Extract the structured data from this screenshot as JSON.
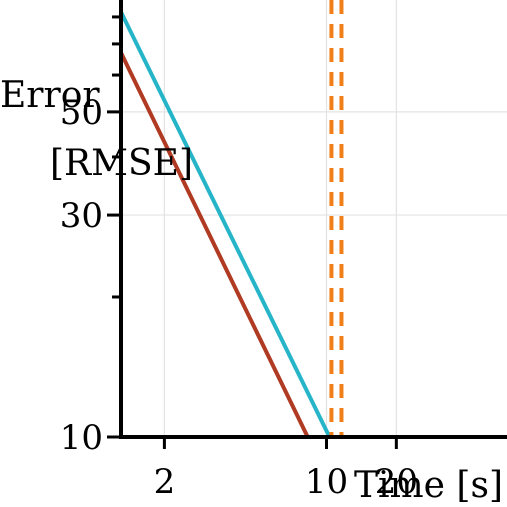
{
  "chart_data": {
    "type": "line",
    "xlabel": "Time [s]",
    "ylabel_lines": [
      "Error",
      "[RMSE]"
    ],
    "x_scale": "log",
    "y_scale": "log",
    "xlim": [
      1.3,
      60
    ],
    "ylim": [
      10,
      87
    ],
    "grid": true,
    "x_ticks": [
      {
        "value": 2,
        "label": "2"
      },
      {
        "value": 10,
        "label": "10"
      },
      {
        "value": 20,
        "label": "20"
      }
    ],
    "y_ticks": [
      {
        "value": 10,
        "label": "10"
      },
      {
        "value": 30,
        "label": "30"
      },
      {
        "value": 50,
        "label": "50"
      }
    ],
    "y_minor_ticks": [
      20,
      40,
      60,
      70,
      80
    ],
    "series": [
      {
        "color": "#26b5c8",
        "x": [
          1.3,
          10.3
        ],
        "y": [
          82,
          10
        ]
      },
      {
        "color": "#b03a22",
        "x": [
          1.3,
          8.3
        ],
        "y": [
          67,
          10
        ]
      }
    ],
    "vlines": [
      {
        "x": 10.5,
        "color": "#f07f1a",
        "style": "dashed"
      },
      {
        "x": 11.6,
        "color": "#f07f1a",
        "style": "dashed"
      }
    ]
  }
}
